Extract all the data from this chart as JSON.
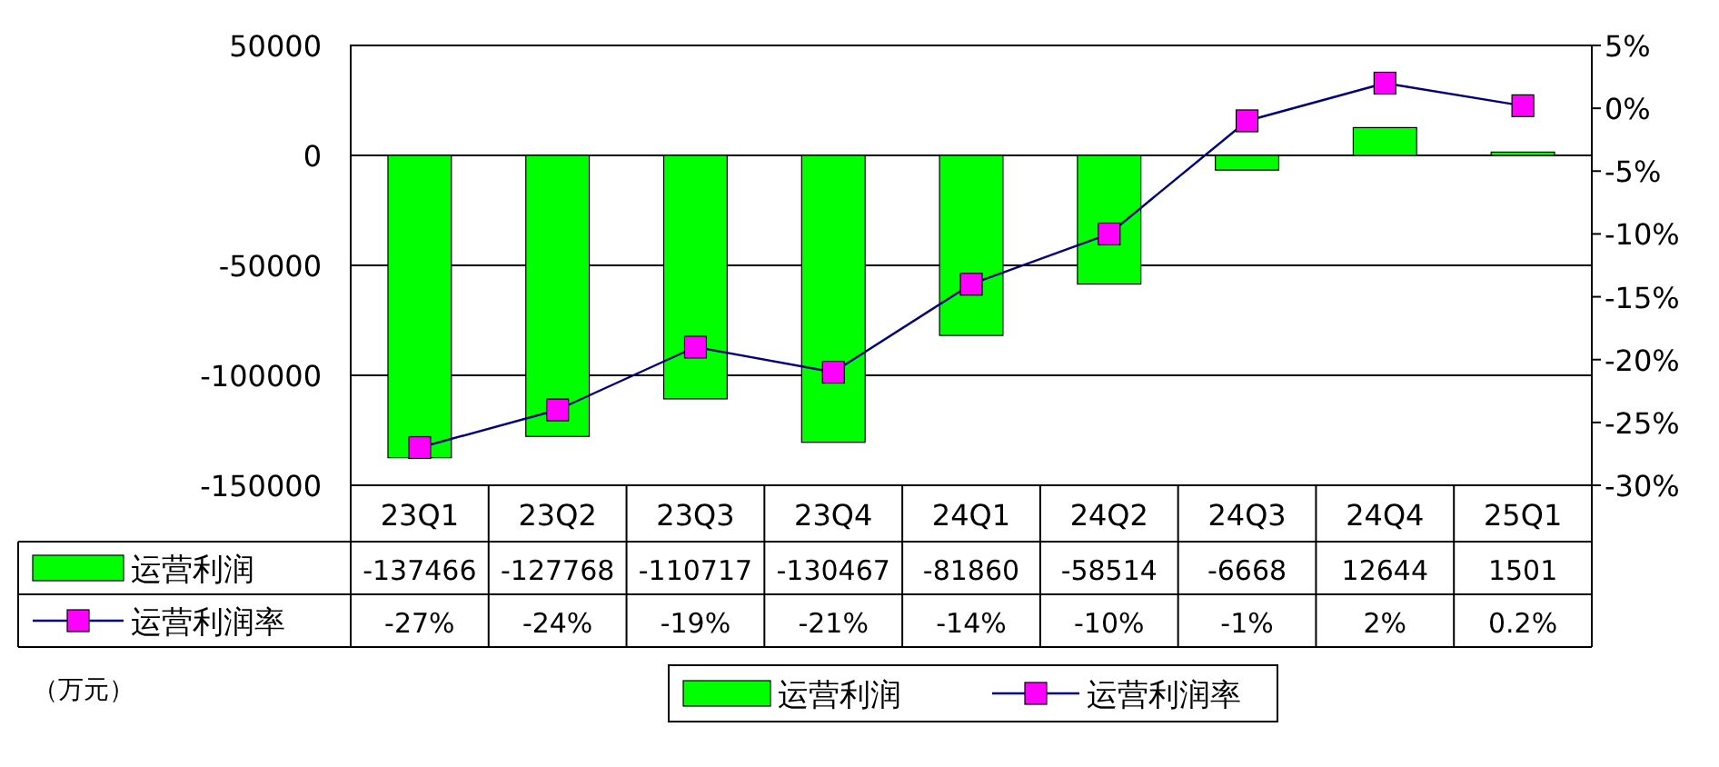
{
  "chart_data": {
    "type": "bar",
    "categories": [
      "23Q1",
      "23Q2",
      "23Q3",
      "23Q4",
      "24Q1",
      "24Q2",
      "24Q3",
      "24Q4",
      "25Q1"
    ],
    "series": [
      {
        "name": "运营利润",
        "color": "#00ff00",
        "values": [
          -137466,
          -127768,
          -110717,
          -130467,
          -81860,
          -58514,
          -6668,
          12644,
          1501
        ],
        "value_labels": [
          "-137466",
          "-127768",
          "-110717",
          "-130467",
          "-81860",
          "-58514",
          "-6668",
          "12644",
          "1501"
        ]
      },
      {
        "name": "运营利润率",
        "type": "line",
        "axis": "y2",
        "color": "#000080",
        "marker": "square",
        "colors": [
          "#ff00ff",
          "#ff00ff",
          "#ff00ff",
          "#ff00ff",
          "#ff00ff",
          "#ff00ff",
          "#ff00ff",
          "#ff00ff",
          "#ff00ff"
        ],
        "values": [
          -27,
          -24,
          -19,
          -21,
          -14,
          -10,
          -1,
          2,
          0.2
        ],
        "value_labels": [
          "-27%",
          "-24%",
          "-19%",
          "-21%",
          "-14%",
          "-10%",
          "-1%",
          "2%",
          "0.2%"
        ]
      }
    ],
    "ylim": [
      -150000,
      50000
    ],
    "yticks": [
      -150000,
      -100000,
      -50000,
      0,
      50000
    ],
    "y2lim": [
      -30,
      5
    ],
    "y2ticks": [
      {
        "value": -30,
        "label": "-30%"
      },
      {
        "value": -25,
        "label": "-25%"
      },
      {
        "value": -20,
        "label": "-20%"
      },
      {
        "value": -15,
        "label": "-15%"
      },
      {
        "value": -10,
        "label": "-10%"
      },
      {
        "value": -5,
        "label": "-5%"
      },
      {
        "value": 0,
        "label": "0%"
      },
      {
        "value": 5,
        "label": "5%"
      }
    ],
    "grid": "y",
    "legend": "bottom",
    "annotations": [
      "（万元）"
    ]
  }
}
